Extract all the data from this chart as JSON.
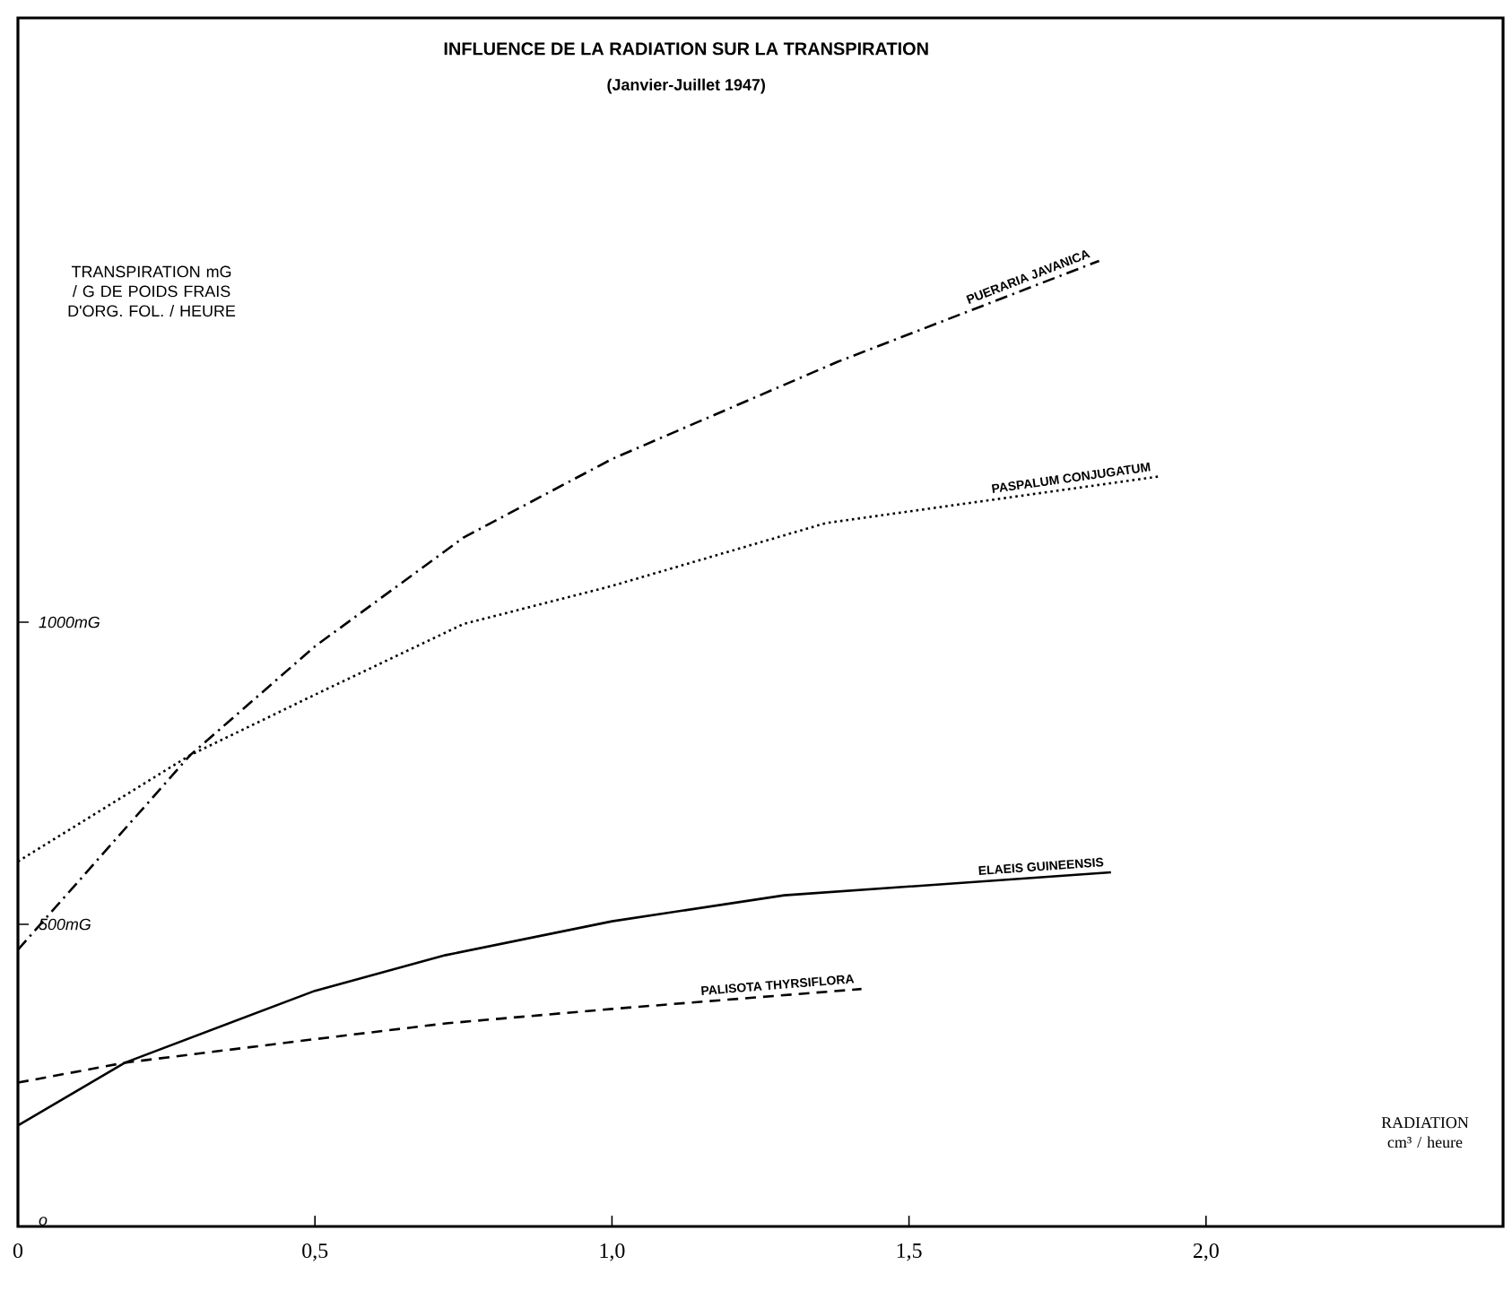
{
  "chart_data": {
    "type": "line",
    "title": "INFLUENCE DE LA RADIATION SUR LA TRANSPIRATION",
    "subtitle": "(Janvier-Juillet 1947)",
    "xlabel": "RADIATION cm³ / heure",
    "ylabel": "TRANSPIRATION mG / G DE POIDS FRAIS D'ORG. FOL. / HEURE",
    "xlim": [
      0,
      2.5
    ],
    "ylim": [
      0,
      2000
    ],
    "xticks": [
      0,
      {
        "value": 0.5,
        "label": "0,5"
      },
      {
        "value": 1.0,
        "label": "1,0"
      },
      {
        "value": 1.5,
        "label": "1,5"
      },
      {
        "value": 2.0,
        "label": "2,0"
      }
    ],
    "yticks": [
      {
        "value": 0,
        "label": "o"
      },
      {
        "value": 500,
        "label": "500mG"
      },
      {
        "value": 1000,
        "label": "1000mG"
      }
    ],
    "series": [
      {
        "name": "PUERARIA JAVANICA",
        "color": "#000000",
        "line_style": "dashdot",
        "x": [
          0,
          0.29,
          0.5,
          0.75,
          1.0,
          1.38,
          1.82
        ],
        "values": [
          458,
          780,
          960,
          1140,
          1270,
          1431,
          1598
        ]
      },
      {
        "name": "PASPALUM CONJUGATUM",
        "color": "#000000",
        "line_style": "dotted",
        "x": [
          0,
          0.29,
          0.5,
          0.75,
          1.0,
          1.36,
          1.92
        ],
        "values": [
          604,
          780,
          880,
          997,
          1060,
          1164,
          1241
        ]
      },
      {
        "name": "ELAEIS GUINEENSIS",
        "color": "#000000",
        "line_style": "solid",
        "x": [
          0,
          0.18,
          0.5,
          0.72,
          1.0,
          1.29,
          1.84
        ],
        "values": [
          167,
          271,
          390,
          449,
          505,
          548,
          586
        ]
      },
      {
        "name": "PALISOTA THYRSIFLORA",
        "color": "#000000",
        "line_style": "dashed",
        "x": [
          0,
          0.18,
          0.5,
          0.72,
          1.0,
          1.42
        ],
        "values": [
          238,
          271,
          310,
          336,
          360,
          393
        ]
      }
    ]
  }
}
